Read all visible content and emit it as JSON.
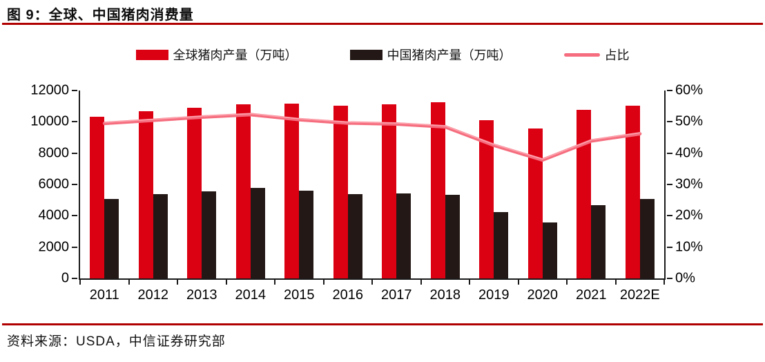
{
  "header": {
    "title": "图 9：全球、中国猪肉消费量"
  },
  "source": {
    "text": "资料来源：USDA，中信证券研究部"
  },
  "colors": {
    "bar_global": "#dc0013",
    "bar_china": "#231815",
    "line_ratio": "#f56d7e",
    "line_highlight": "#fda4ae",
    "rule": "#b00000",
    "axis": "#1a1a1a"
  },
  "chart_data": {
    "type": "combo",
    "categories": [
      "2011",
      "2012",
      "2013",
      "2014",
      "2015",
      "2016",
      "2017",
      "2018",
      "2019",
      "2020",
      "2021",
      "2022E"
    ],
    "series": [
      {
        "name": "全球猪肉产量（万吨）",
        "type": "bar",
        "axis": "left",
        "color": "#dc0013",
        "values": [
          10330,
          10680,
          10900,
          11100,
          11160,
          11050,
          11100,
          11230,
          10100,
          9560,
          10750,
          11050
        ]
      },
      {
        "name": "中国猪肉产量（万吨）",
        "type": "bar",
        "axis": "left",
        "color": "#231815",
        "values": [
          5060,
          5380,
          5570,
          5770,
          5620,
          5400,
          5440,
          5350,
          4230,
          3580,
          4660,
          5080
        ]
      },
      {
        "name": "占比",
        "type": "line",
        "axis": "right",
        "color": "#f56d7e",
        "values": [
          49.5,
          50.5,
          51.5,
          52.3,
          50.7,
          49.6,
          49.3,
          48.4,
          42.5,
          37.8,
          43.9,
          46.2
        ]
      }
    ],
    "left_axis": {
      "min": 0,
      "max": 12000,
      "step": 2000,
      "tick_labels": [
        "0",
        "2000",
        "4000",
        "6000",
        "8000",
        "10000",
        "12000"
      ]
    },
    "right_axis": {
      "min": 0,
      "max": 60,
      "step": 10,
      "tick_labels": [
        "0%",
        "10%",
        "20%",
        "30%",
        "40%",
        "50%",
        "60%"
      ]
    },
    "legend_position": "top",
    "grid": false,
    "title": "图 9：全球、中国猪肉消费量"
  }
}
